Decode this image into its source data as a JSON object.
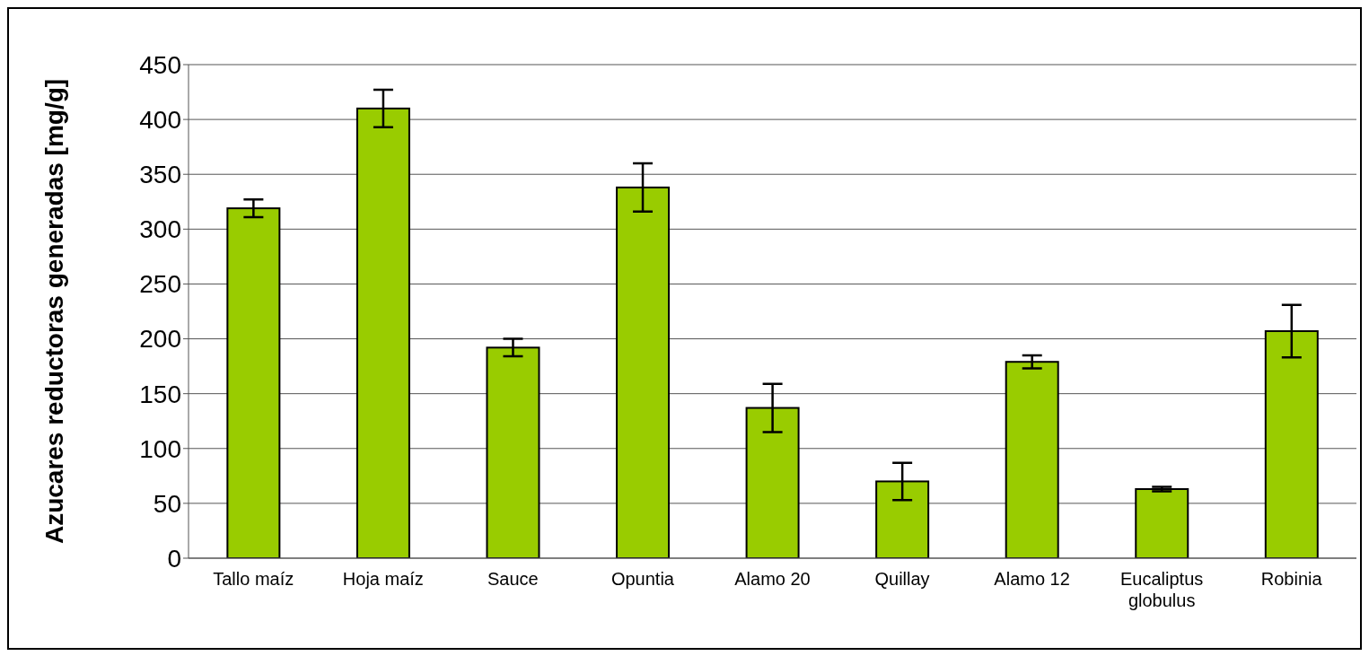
{
  "chart_data": {
    "type": "bar",
    "ylabel": "Azucares reductoras generadas [mg/g]",
    "categories": [
      "Tallo maíz",
      "Hoja maíz",
      "Sauce",
      "Opuntia",
      "Alamo 20",
      "Quillay",
      "Alamo 12",
      "Eucaliptus globulus",
      "Robinia"
    ],
    "values": [
      319,
      410,
      192,
      338,
      137,
      70,
      179,
      63,
      207
    ],
    "errors": [
      8,
      17,
      8,
      22,
      22,
      17,
      6,
      2,
      24
    ],
    "color": "#99cc00",
    "ylim": [
      0,
      450
    ],
    "yticks": [
      0,
      50,
      100,
      150,
      200,
      250,
      300,
      350,
      400,
      450
    ],
    "grid": "y"
  }
}
